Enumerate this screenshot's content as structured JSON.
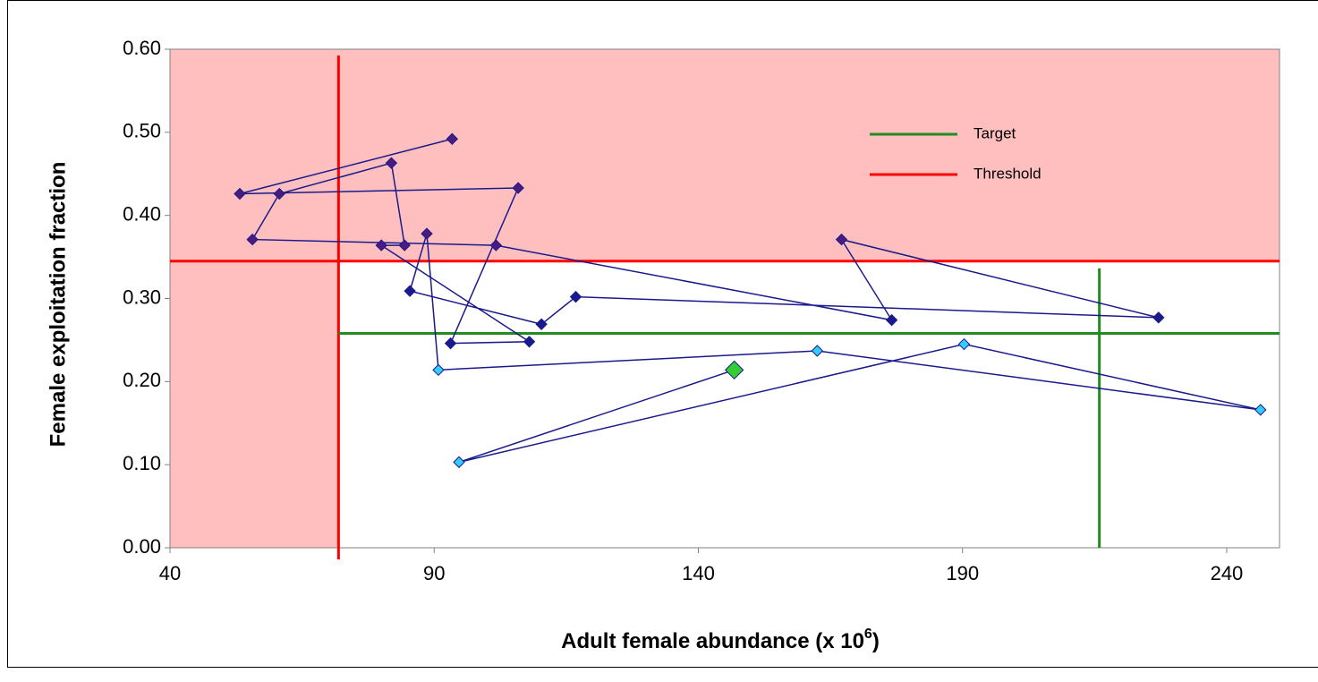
{
  "chart_data": {
    "type": "scatter-line",
    "xlabel_parts": [
      "Adult female abundance (x 10",
      "6",
      ")"
    ],
    "ylabel": "Female exploitation fraction",
    "xlim": [
      40,
      250
    ],
    "ylim": [
      0,
      0.6
    ],
    "xticks": [
      40,
      90,
      140,
      190,
      240
    ],
    "yticks": [
      {
        "value": 0,
        "label": "0.00"
      },
      {
        "value": 0.1,
        "label": "0.10"
      },
      {
        "value": 0.2,
        "label": "0.20"
      },
      {
        "value": 0.3,
        "label": "0.30"
      },
      {
        "value": 0.4,
        "label": "0.40"
      },
      {
        "value": 0.5,
        "label": "0.50"
      },
      {
        "value": 0.6,
        "label": "0.60"
      }
    ],
    "danger_color": "#ffbfbf",
    "reference_lines": [
      {
        "name": "Target",
        "color": "#228b22",
        "x": 215.9,
        "y": 0.258
      },
      {
        "name": "Threshold",
        "color": "#ff0000",
        "x": 71.9,
        "y": 0.345
      }
    ],
    "series": [
      {
        "line_color": "#1a1a8c",
        "x": [
          93.4,
          53.2,
          105.9,
          93.1,
          108.0,
          80.0,
          84.4,
          81.9,
          60.7,
          55.6,
          101.7,
          176.6,
          167.1,
          227.1,
          116.8,
          110.3,
          85.4,
          88.6,
          90.8,
          162.5,
          246.4,
          190.3,
          94.7,
          146.8
        ],
        "values": [
          0.492,
          0.426,
          0.433,
          0.246,
          0.248,
          0.364,
          0.364,
          0.463,
          0.426,
          0.371,
          0.364,
          0.274,
          0.371,
          0.277,
          0.302,
          0.269,
          0.309,
          0.378,
          0.214,
          0.237,
          0.166,
          0.245,
          0.103,
          0.214
        ],
        "marker_colors": [
          "#4b1a7d",
          "#4b1a7d",
          "#4b1a7d",
          "#1a1a8c",
          "#1a1a8c",
          "#4b1a7d",
          "#4b1a7d",
          "#4b1a7d",
          "#4b1a7d",
          "#4b1a7d",
          "#4b1a7d",
          "#1a1a8c",
          "#4b1a7d",
          "#1a1a8c",
          "#1a1a8c",
          "#1a1a8c",
          "#1a1a8c",
          "#4b1a7d",
          "#33ccff",
          "#33ccff",
          "#33ccff",
          "#33ccff",
          "#33ccff",
          "#33cc33"
        ]
      }
    ]
  }
}
